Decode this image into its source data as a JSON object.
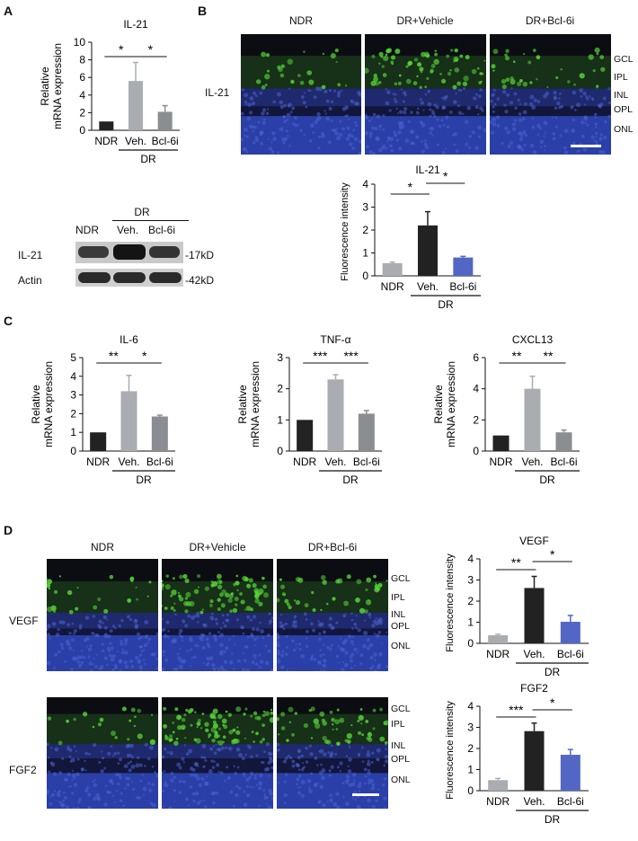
{
  "panels": {
    "a": "A",
    "b": "B",
    "c": "C",
    "d": "D"
  },
  "axis": {
    "relative": "Relative",
    "mrna": "mRNA expression",
    "fluorescence": "Fluorescence intensity"
  },
  "groups": {
    "ndr": "NDR",
    "veh": "Veh.",
    "bcl": "Bcl-6i",
    "dr": "DR"
  },
  "image_cols": {
    "ndr": "NDR",
    "vehicle": "DR+Vehicle",
    "bcl": "DR+Bcl-6i"
  },
  "layers": [
    "GCL",
    "IPL",
    "INL",
    "OPL",
    "ONL"
  ],
  "row_labels": {
    "il21": "IL-21",
    "vegf": "VEGF",
    "fgf2": "FGF2"
  },
  "blot": {
    "dr": "DR",
    "ndr": "NDR",
    "veh": "Veh.",
    "bcl": "Bcl-6i",
    "rows": [
      {
        "label": "IL-21",
        "size": "-17kD"
      },
      {
        "label": "Actin",
        "size": "-42kD"
      }
    ]
  },
  "colors": {
    "ndr_mrna": "#222222",
    "veh_mrna": "#a9adb1",
    "bcl_mrna": "#8a8d91",
    "ndr_fluor": "#a9adb1",
    "veh_fluor": "#222222",
    "bcl_fluor": "#5267c4"
  },
  "chart_data": [
    {
      "id": "il21_mrna",
      "type": "bar",
      "title": "IL-21",
      "ylabel": "Relative mRNA expression",
      "categories": [
        "NDR",
        "Veh.",
        "Bcl-6i"
      ],
      "values": [
        1.0,
        5.6,
        2.1
      ],
      "errors": [
        0,
        2.1,
        0.7
      ],
      "ylim": [
        0,
        10
      ],
      "yticks": [
        0,
        2,
        4,
        6,
        8,
        10
      ],
      "significance": [
        "*",
        "*"
      ]
    },
    {
      "id": "il21_fluor",
      "type": "bar",
      "title": "IL-21",
      "ylabel": "Fluorescence intensity",
      "categories": [
        "NDR",
        "Veh.",
        "Bcl-6i"
      ],
      "values": [
        0.55,
        2.2,
        0.8
      ],
      "errors": [
        0.05,
        0.6,
        0.05
      ],
      "ylim": [
        0,
        4
      ],
      "yticks": [
        0,
        1,
        2,
        3,
        4
      ],
      "significance": [
        "*",
        "*"
      ]
    },
    {
      "id": "il6_mrna",
      "type": "bar",
      "title": "IL-6",
      "ylabel": "Relative mRNA expression",
      "categories": [
        "NDR",
        "Veh.",
        "Bcl-6i"
      ],
      "values": [
        1.0,
        3.2,
        1.85
      ],
      "errors": [
        0,
        0.85,
        0.07
      ],
      "ylim": [
        0,
        5
      ],
      "yticks": [
        0,
        1,
        2,
        3,
        4,
        5
      ],
      "significance": [
        "**",
        "*"
      ]
    },
    {
      "id": "tnfa_mrna",
      "type": "bar",
      "title": "TNF-α",
      "ylabel": "Relative mRNA expression",
      "categories": [
        "NDR",
        "Veh.",
        "Bcl-6i"
      ],
      "values": [
        1.0,
        2.3,
        1.2
      ],
      "errors": [
        0,
        0.15,
        0.1
      ],
      "ylim": [
        0,
        3
      ],
      "yticks": [
        0,
        1,
        2,
        3
      ],
      "significance": [
        "***",
        "***"
      ]
    },
    {
      "id": "cxcl13_mrna",
      "type": "bar",
      "title": "CXCL13",
      "ylabel": "Relative mRNA expression",
      "categories": [
        "NDR",
        "Veh.",
        "Bcl-6i"
      ],
      "values": [
        1.0,
        4.0,
        1.2
      ],
      "errors": [
        0,
        0.8,
        0.15
      ],
      "ylim": [
        0,
        6
      ],
      "yticks": [
        0,
        2,
        4,
        6
      ],
      "significance": [
        "**",
        "**"
      ]
    },
    {
      "id": "vegf_fluor",
      "type": "bar",
      "title": "VEGF",
      "ylabel": "Fluorescence intensity",
      "categories": [
        "NDR",
        "Veh.",
        "Bcl-6i"
      ],
      "values": [
        0.38,
        2.62,
        1.02
      ],
      "errors": [
        0.05,
        0.55,
        0.3
      ],
      "ylim": [
        0,
        4
      ],
      "yticks": [
        0,
        1,
        2,
        3,
        4
      ],
      "significance": [
        "**",
        "*"
      ]
    },
    {
      "id": "fgf2_fluor",
      "type": "bar",
      "title": "FGF2",
      "ylabel": "Fluorescence intensity",
      "categories": [
        "NDR",
        "Veh.",
        "Bcl-6i"
      ],
      "values": [
        0.5,
        2.82,
        1.7
      ],
      "errors": [
        0.08,
        0.38,
        0.25
      ],
      "ylim": [
        0,
        4
      ],
      "yticks": [
        0,
        1,
        2,
        3,
        4
      ],
      "significance": [
        "***",
        "*"
      ]
    }
  ]
}
